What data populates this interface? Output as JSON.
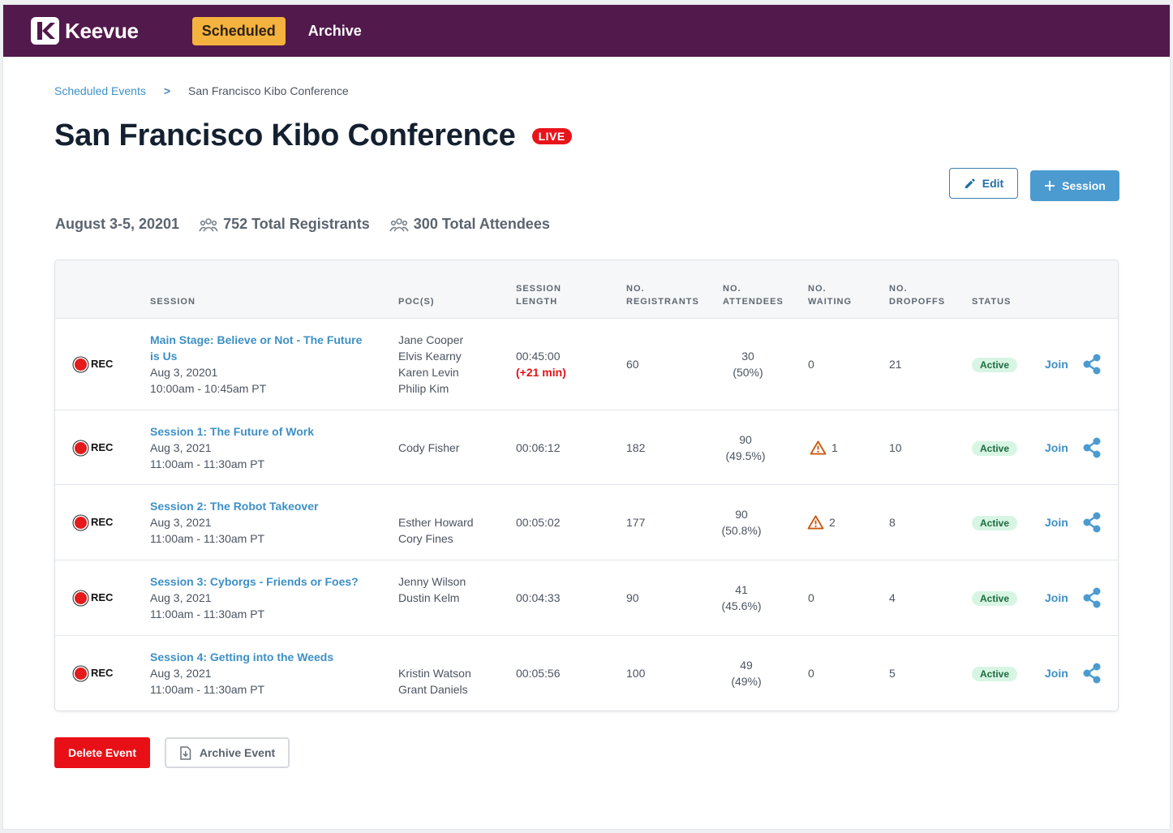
{
  "brand": {
    "name": "Keevue",
    "logo_icon": "keevue-logo-icon"
  },
  "nav": {
    "tabs": [
      {
        "label": "Scheduled",
        "active": true
      },
      {
        "label": "Archive",
        "active": false
      }
    ]
  },
  "breadcrumb": {
    "parent": "Scheduled Events",
    "separator": ">",
    "current": "San Francisco Kibo Conference"
  },
  "event": {
    "title": "San Francisco Kibo Conference",
    "live_label": "LIVE",
    "dates": "August 3-5, 20201",
    "registrants": "752 Total Registrants",
    "attendees": "300 Total Attendees"
  },
  "actions": {
    "edit_label": "Edit",
    "session_label": "Session",
    "delete_label": "Delete Event",
    "archive_label": "Archive Event"
  },
  "table": {
    "headers": {
      "session": "SESSION",
      "pocs": "POC(S)",
      "length_1": "SESSION",
      "length_2": "LENGTH",
      "registrants_1": "NO.",
      "registrants_2": "REGISTRANTS",
      "attendees_1": "NO.",
      "attendees_2": "ATTENDEES",
      "waiting_1": "NO.",
      "waiting_2": "WAITING",
      "dropoffs_1": "NO.",
      "dropoffs_2": "DROPOFFS",
      "status": "STATUS"
    },
    "rows": [
      {
        "rec": "REC",
        "title_1": "Main Stage: Believe or Not - The Future",
        "title_2": "is Us",
        "date": "Aug 3, 20201",
        "time": "10:00am - 10:45am PT",
        "pocs": [
          "Jane Cooper",
          "Elvis Kearny",
          "Karen Levin",
          "Philip Kim"
        ],
        "length": "00:45:00",
        "extra": "(+21 min)",
        "registrants": "60",
        "attendees": "30",
        "attendees_pct": "(50%)",
        "waiting": "0",
        "waiting_warning": false,
        "dropoffs": "21",
        "status": "Active",
        "join": "Join"
      },
      {
        "rec": "REC",
        "title_1": "Session 1: The Future of Work",
        "date": "Aug 3, 2021",
        "time": "11:00am - 11:30am PT",
        "pocs": [
          "Cody Fisher"
        ],
        "length": "00:06:12",
        "registrants": "182",
        "attendees": "90",
        "attendees_pct": "(49.5%)",
        "waiting": "1",
        "waiting_warning": true,
        "dropoffs": "10",
        "status": "Active",
        "join": "Join"
      },
      {
        "rec": "REC",
        "title_1": "Session 2: The Robot Takeover",
        "date": "Aug 3, 2021",
        "time": "11:00am - 11:30am PT",
        "pocs": [
          "Esther Howard",
          "Cory Fines"
        ],
        "length": "00:05:02",
        "registrants": "177",
        "attendees": "90",
        "attendees_pct": "(50.8%)",
        "waiting": "2",
        "waiting_warning": true,
        "dropoffs": "8",
        "status": "Active",
        "join": "Join"
      },
      {
        "rec": "REC",
        "title_1": "Session 3: Cyborgs - Friends or Foes?",
        "date": "Aug 3, 2021",
        "time": "11:00am - 11:30am PT",
        "pocs": [
          "Jenny Wilson",
          "Dustin Kelm"
        ],
        "length": "00:04:33",
        "registrants": "90",
        "attendees": "41",
        "attendees_pct": "(45.6%)",
        "waiting": "0",
        "waiting_warning": false,
        "dropoffs": "4",
        "status": "Active",
        "join": "Join"
      },
      {
        "rec": "REC",
        "title_1": "Session 4: Getting into the Weeds",
        "date": "Aug 3, 2021",
        "time": "11:00am - 11:30am PT",
        "pocs": [
          "Kristin Watson",
          "Grant Daniels"
        ],
        "length": "00:05:56",
        "registrants": "100",
        "attendees": "49",
        "attendees_pct": "(49%)",
        "waiting": "0",
        "waiting_warning": false,
        "dropoffs": "5",
        "status": "Active",
        "join": "Join"
      }
    ]
  },
  "colors": {
    "topbar": "#52194c",
    "accent_tab": "#f4b23e",
    "link": "#3d90c6",
    "live": "#e8141b",
    "warning": "#c85a12"
  }
}
